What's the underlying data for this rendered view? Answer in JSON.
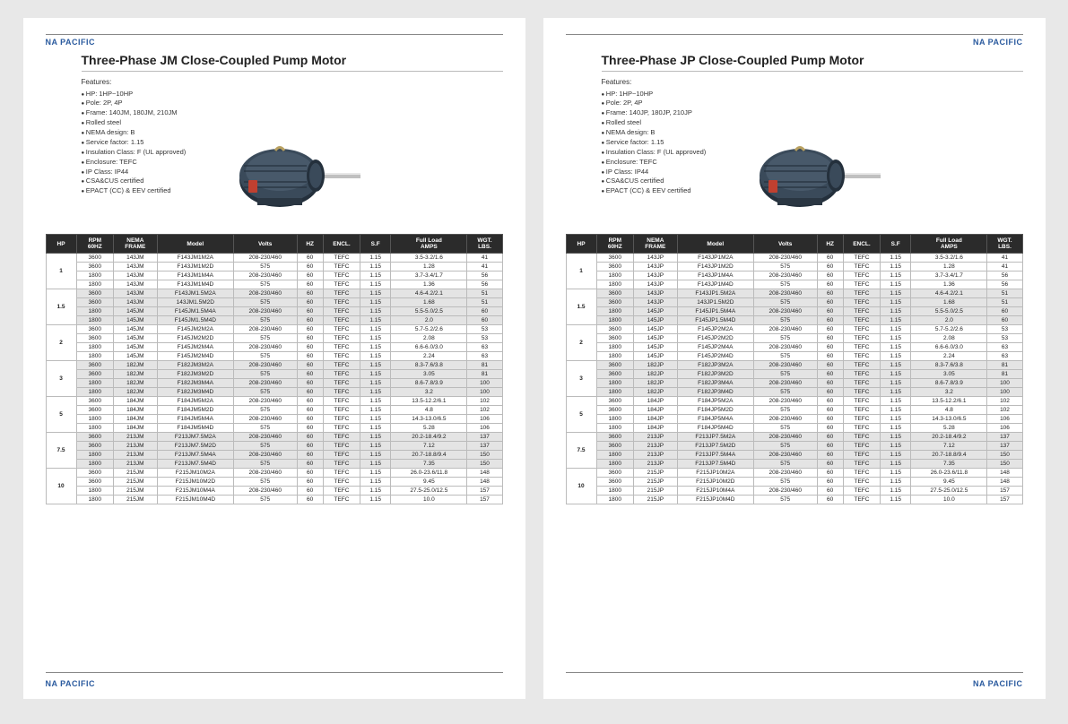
{
  "brand": "NA PACIFIC",
  "pages": [
    {
      "title": "Three-Phase JM Close-Coupled Pump Motor",
      "framePrefix": "JM",
      "logoSide": "left"
    },
    {
      "title": "Three-Phase JP Close-Coupled Pump Motor",
      "framePrefix": "JP",
      "logoSide": "right"
    }
  ],
  "featuresHeader": "Features:",
  "features": [
    "HP: 1HP~10HP",
    "Pole: 2P, 4P",
    "Frame: 140{FX}, 180{FX}, 210{FX}",
    "Rolled steel",
    "NEMA design: B",
    "Service factor: 1.15",
    "Insulation Class: F (UL approved)",
    "Enclosure: TEFC",
    "IP Class: IP44",
    "CSA&CUS certified",
    "EPACT (CC) & EEV certified"
  ],
  "columns": [
    "HP",
    "RPM\n60HZ",
    "NEMA\nFRAME",
    "Model",
    "Volts",
    "HZ",
    "ENCL.",
    "S.F",
    "Full Load\nAMPS",
    "WGT.\nLBS."
  ],
  "colClasses": [
    "col-hp",
    "col-rpm",
    "col-frame",
    "col-model",
    "col-volts",
    "col-hz",
    "col-encl",
    "col-sf",
    "col-amps",
    "col-wgt"
  ],
  "groups": [
    {
      "hp": "1",
      "shade": false,
      "rows": [
        [
          "3600",
          "143",
          "F143{FX}1M2A",
          "208-230/460",
          "60",
          "TEFC",
          "1.15",
          "3.5-3.2/1.6",
          "41"
        ],
        [
          "3600",
          "143",
          "F143{FX}1M2D",
          "575",
          "60",
          "TEFC",
          "1.15",
          "1.28",
          "41"
        ],
        [
          "1800",
          "143",
          "F143{FX}1M4A",
          "208-230/460",
          "60",
          "TEFC",
          "1.15",
          "3.7-3.4/1.7",
          "56"
        ],
        [
          "1800",
          "143",
          "F143{FX}1M4D",
          "575",
          "60",
          "TEFC",
          "1.15",
          "1.36",
          "56"
        ]
      ]
    },
    {
      "hp": "1.5",
      "shade": true,
      "rows": [
        [
          "3600",
          "143",
          "F143{FX}1.5M2A",
          "208-230/460",
          "60",
          "TEFC",
          "1.15",
          "4.6-4.2/2.1",
          "51"
        ],
        [
          "3600",
          "143",
          "143{FX}1.5M2D",
          "575",
          "60",
          "TEFC",
          "1.15",
          "1.68",
          "51"
        ],
        [
          "1800",
          "145",
          "F145{FX}1.5M4A",
          "208-230/460",
          "60",
          "TEFC",
          "1.15",
          "5.5-5.0/2.5",
          "60"
        ],
        [
          "1800",
          "145",
          "F145{FX}1.5M4D",
          "575",
          "60",
          "TEFC",
          "1.15",
          "2.0",
          "60"
        ]
      ]
    },
    {
      "hp": "2",
      "shade": false,
      "rows": [
        [
          "3600",
          "145",
          "F145{FX}2M2A",
          "208-230/460",
          "60",
          "TEFC",
          "1.15",
          "5.7-5.2/2.6",
          "53"
        ],
        [
          "3600",
          "145",
          "F145{FX}2M2D",
          "575",
          "60",
          "TEFC",
          "1.15",
          "2.08",
          "53"
        ],
        [
          "1800",
          "145",
          "F145{FX}2M4A",
          "208-230/460",
          "60",
          "TEFC",
          "1.15",
          "6.6-6.0/3.0",
          "63"
        ],
        [
          "1800",
          "145",
          "F145{FX}2M4D",
          "575",
          "60",
          "TEFC",
          "1.15",
          "2.24",
          "63"
        ]
      ]
    },
    {
      "hp": "3",
      "shade": true,
      "rows": [
        [
          "3600",
          "182",
          "F182{FX}3M2A",
          "208-230/460",
          "60",
          "TEFC",
          "1.15",
          "8.3-7.6/3.8",
          "81"
        ],
        [
          "3600",
          "182",
          "F182{FX}3M2D",
          "575",
          "60",
          "TEFC",
          "1.15",
          "3.05",
          "81"
        ],
        [
          "1800",
          "182",
          "F182{FX}3M4A",
          "208-230/460",
          "60",
          "TEFC",
          "1.15",
          "8.6-7.8/3.9",
          "100"
        ],
        [
          "1800",
          "182",
          "F182{FX}3M4D",
          "575",
          "60",
          "TEFC",
          "1.15",
          "3.2",
          "100"
        ]
      ]
    },
    {
      "hp": "5",
      "shade": false,
      "rows": [
        [
          "3600",
          "184",
          "F184{FX}5M2A",
          "208-230/460",
          "60",
          "TEFC",
          "1.15",
          "13.5-12.2/6.1",
          "102"
        ],
        [
          "3600",
          "184",
          "F184{FX}5M2D",
          "575",
          "60",
          "TEFC",
          "1.15",
          "4.8",
          "102"
        ],
        [
          "1800",
          "184",
          "F184{FX}5M4A",
          "208-230/460",
          "60",
          "TEFC",
          "1.15",
          "14.3-13.0/6.5",
          "106"
        ],
        [
          "1800",
          "184",
          "F184{FX}5M4D",
          "575",
          "60",
          "TEFC",
          "1.15",
          "5.28",
          "106"
        ]
      ]
    },
    {
      "hp": "7.5",
      "shade": true,
      "rows": [
        [
          "3600",
          "213",
          "F213{FX}7.5M2A",
          "208-230/460",
          "60",
          "TEFC",
          "1.15",
          "20.2-18.4/9.2",
          "137"
        ],
        [
          "3600",
          "213",
          "F213{FX}7.5M2D",
          "575",
          "60",
          "TEFC",
          "1.15",
          "7.12",
          "137"
        ],
        [
          "1800",
          "213",
          "F213{FX}7.5M4A",
          "208-230/460",
          "60",
          "TEFC",
          "1.15",
          "20.7-18.8/9.4",
          "150"
        ],
        [
          "1800",
          "213",
          "F213{FX}7.5M4D",
          "575",
          "60",
          "TEFC",
          "1.15",
          "7.35",
          "150"
        ]
      ]
    },
    {
      "hp": "10",
      "shade": false,
      "rows": [
        [
          "3600",
          "215",
          "F215{FX}10M2A",
          "208-230/460",
          "60",
          "TEFC",
          "1.15",
          "26.0-23.6/11.8",
          "148"
        ],
        [
          "3600",
          "215",
          "F215{FX}10M2D",
          "575",
          "60",
          "TEFC",
          "1.15",
          "9.45",
          "148"
        ],
        [
          "1800",
          "215",
          "F215{FX}10M4A",
          "208-230/460",
          "60",
          "TEFC",
          "1.15",
          "27.5-25.0/12.5",
          "157"
        ],
        [
          "1800",
          "215",
          "F215{FX}10M4D",
          "575",
          "60",
          "TEFC",
          "1.15",
          "10.0",
          "157"
        ]
      ]
    }
  ],
  "motorColors": {
    "body": "#3a4a5a",
    "bodyDark": "#24303c",
    "bodyLight": "#55687a",
    "shaft": "#c0c0c0",
    "eyelet": "#b8a060",
    "label": "#c04030",
    "base": "#2a3642"
  }
}
